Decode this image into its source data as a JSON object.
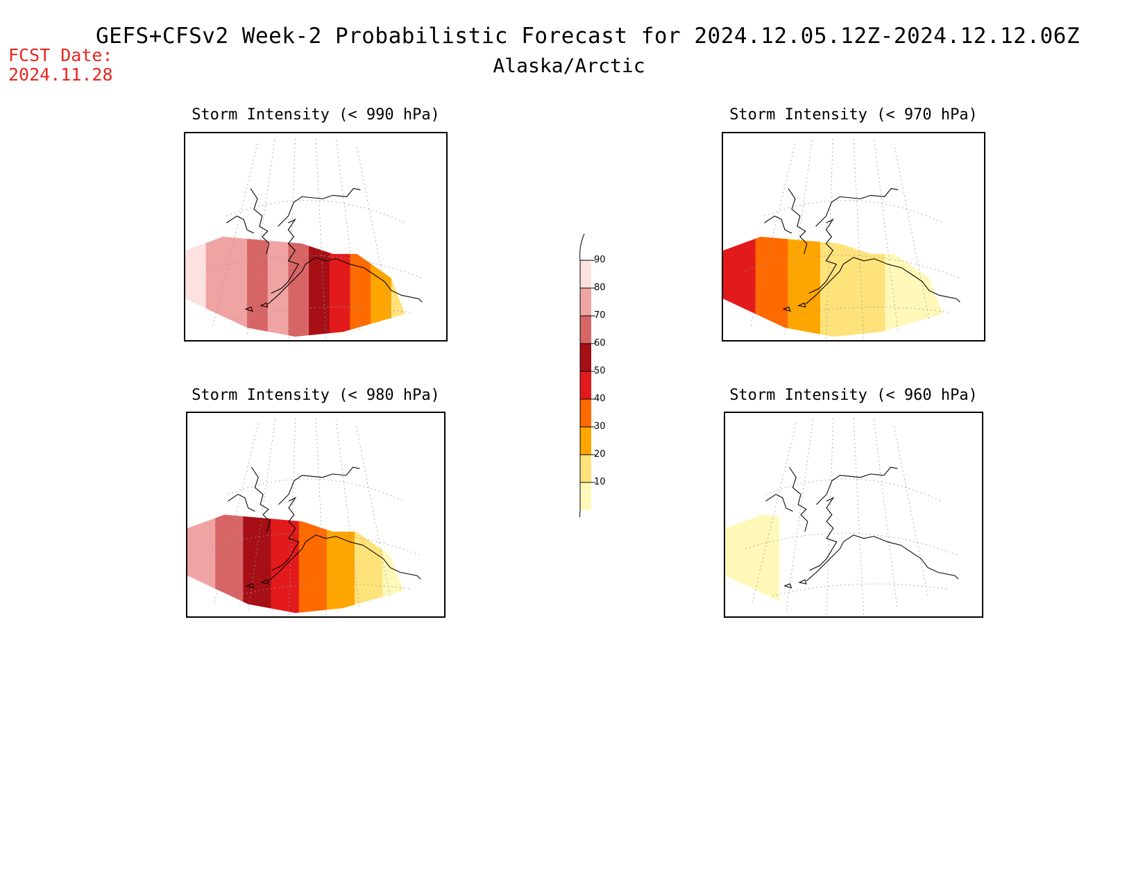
{
  "header": {
    "title": "GEFS+CFSv2 Week-2 Probabilistic Forecast for 2024.12.05.12Z-2024.12.12.06Z",
    "subtitle": "Alaska/Arctic",
    "fcst_label": "FCST Date:",
    "fcst_date": "2024.11.28"
  },
  "panels": [
    {
      "id": "p990",
      "title": "Storm Intensity (< 990 hPa)",
      "threshold_hpa": 990,
      "level_profile": [
        90,
        80,
        80,
        70,
        80,
        70,
        60,
        50,
        40,
        30,
        20
      ]
    },
    {
      "id": "p970",
      "title": "Storm Intensity (< 970 hPa)",
      "threshold_hpa": 970,
      "level_profile": [
        50,
        40,
        30,
        20,
        20,
        10,
        10
      ]
    },
    {
      "id": "p980",
      "title": "Storm Intensity (< 980 hPa)",
      "threshold_hpa": 980,
      "level_profile": [
        80,
        70,
        60,
        50,
        40,
        30,
        20,
        10
      ]
    },
    {
      "id": "p960",
      "title": "Storm Intensity (< 960 hPa)",
      "threshold_hpa": 960,
      "level_profile": [
        10
      ]
    }
  ],
  "legend": {
    "levels": [
      "90",
      "80",
      "70",
      "60",
      "50",
      "40",
      "30",
      "20",
      "10"
    ],
    "colors": [
      "#fde0e0",
      "#f0a3a3",
      "#d86565",
      "#a50f15",
      "#e31a1c",
      "#ff6a00",
      "#ffa500",
      "#ffe27a",
      "#fff8b8"
    ]
  }
}
